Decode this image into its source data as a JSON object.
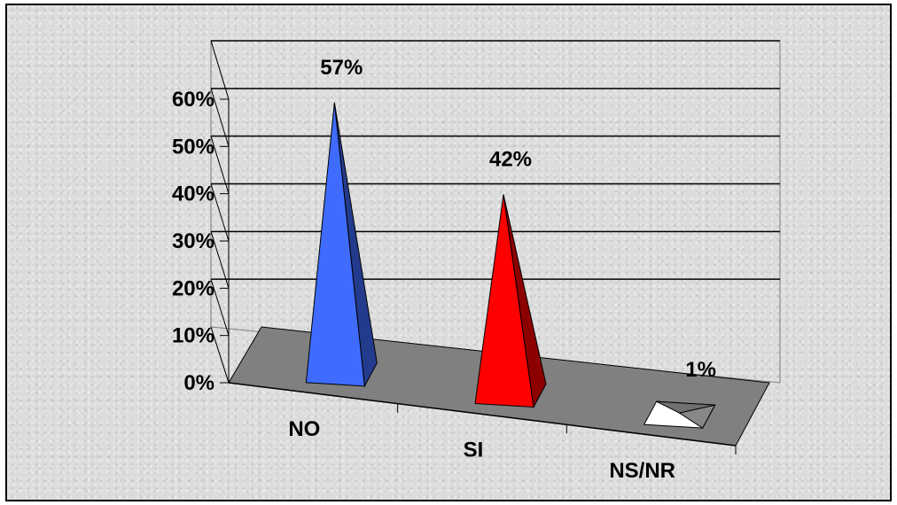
{
  "chart_data": {
    "type": "bar",
    "style": "3d-pyramid",
    "categories": [
      "NO",
      "SI",
      "NS/NR"
    ],
    "values": [
      57,
      42,
      1
    ],
    "data_labels": [
      "57%",
      "42%",
      "1%"
    ],
    "colors": [
      "#3f6cff",
      "#ff0000",
      "#ffffff"
    ],
    "ylim": [
      0,
      60
    ],
    "yticks": [
      0,
      10,
      20,
      30,
      40,
      50,
      60
    ],
    "ytick_labels": [
      "0%",
      "10%",
      "20%",
      "30%",
      "40%",
      "50%",
      "60%"
    ],
    "grid": true,
    "legend": "none",
    "floor_color": "#808080"
  }
}
